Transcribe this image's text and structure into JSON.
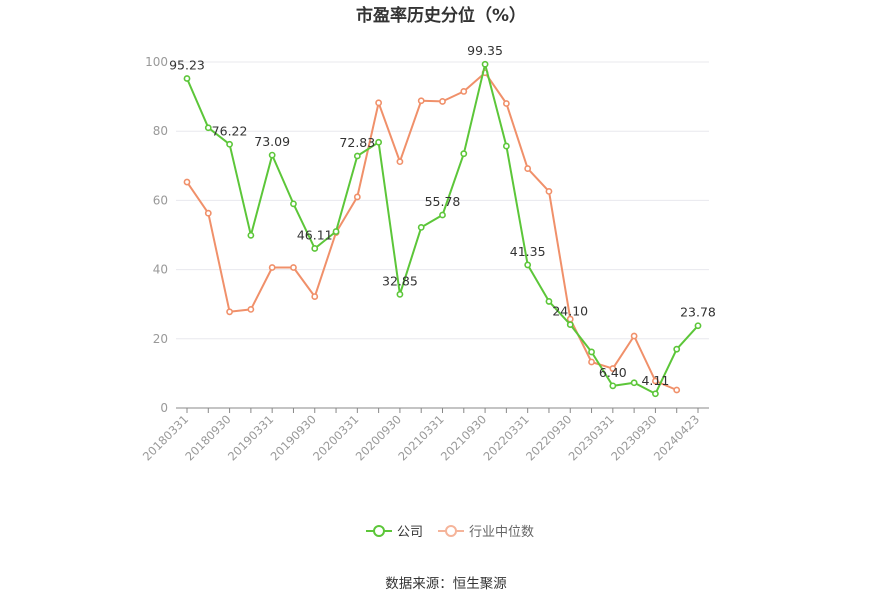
{
  "title": "市盈率历史分位（%）",
  "source": "数据来源：恒生聚源",
  "chart_data": {
    "type": "line",
    "title": "市盈率历史分位（%）",
    "ylim": [
      0,
      100
    ],
    "yticks": [
      0,
      20,
      40,
      60,
      80,
      100
    ],
    "grid": true,
    "legend_position": "bottom",
    "x_ticklabels": [
      "20180331",
      "20180930",
      "20190331",
      "20190930",
      "20200331",
      "20200930",
      "20210331",
      "20210930",
      "20220331",
      "20220930",
      "20230331",
      "20230930",
      "20240423"
    ],
    "series": [
      {
        "name": "公司",
        "color": "#5cc639",
        "values": [
          95.23,
          81.0,
          76.22,
          49.9,
          73.09,
          59.0,
          46.11,
          51.0,
          72.83,
          76.8,
          32.85,
          52.2,
          55.78,
          73.5,
          99.35,
          75.7,
          41.35,
          30.8,
          24.1,
          16.2,
          6.4,
          7.3,
          4.11,
          17.0,
          23.78
        ],
        "labels": {
          "0": "95.23",
          "2": "76.22",
          "4": "73.09",
          "6": "46.11",
          "8": "72.83",
          "10": "32.85",
          "12": "55.78",
          "14": "99.35",
          "16": "41.35",
          "18": "24.10",
          "20": "6.40",
          "22": "4.11",
          "24": "23.78"
        }
      },
      {
        "name": "行业中位数",
        "color": "#f0906a",
        "values": [
          65.3,
          56.3,
          27.8,
          28.5,
          40.6,
          40.6,
          32.2,
          50.7,
          61.0,
          88.2,
          71.2,
          88.8,
          88.6,
          91.5,
          96.9,
          88.0,
          69.2,
          62.6,
          25.7,
          13.3,
          11.4,
          20.8,
          7.8,
          5.2,
          null
        ]
      }
    ]
  }
}
